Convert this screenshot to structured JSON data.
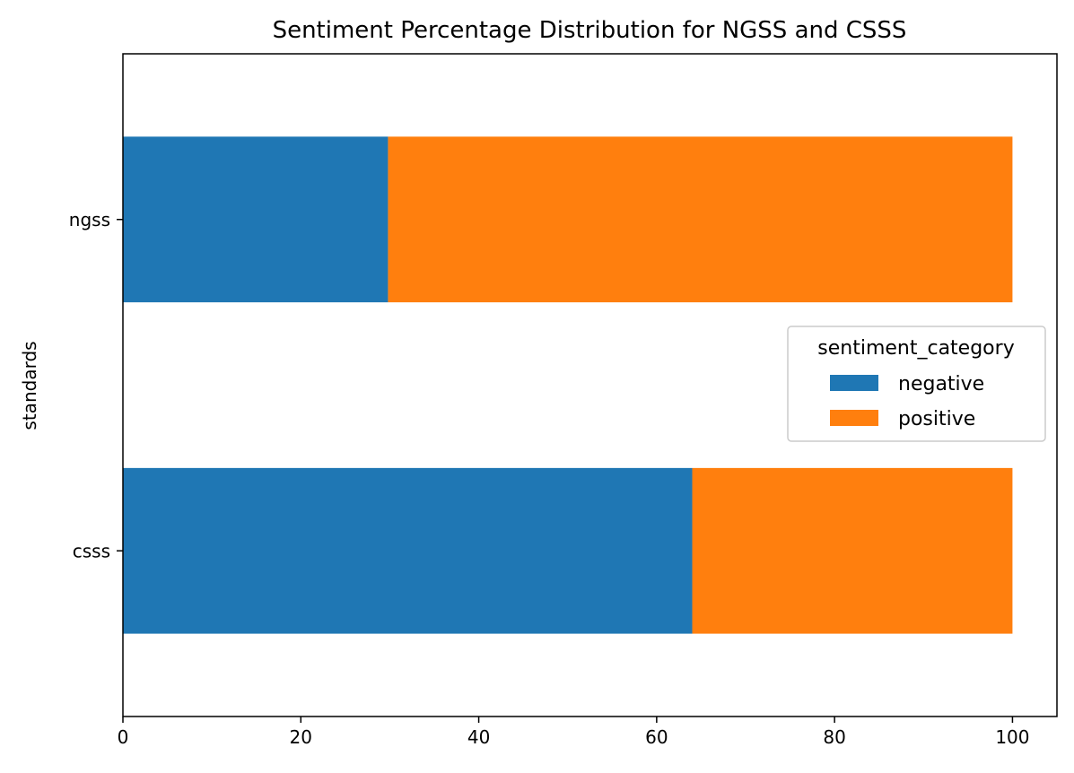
{
  "chart_data": {
    "type": "bar",
    "orientation": "horizontal",
    "stacked": true,
    "title": "Sentiment Percentage Distribution for NGSS and CSSS",
    "xlabel": "",
    "ylabel": "standards",
    "categories": [
      "csss",
      "ngss"
    ],
    "series": [
      {
        "name": "negative",
        "color": "#1f77b4",
        "values": [
          64.0,
          29.8
        ]
      },
      {
        "name": "positive",
        "color": "#ff7f0e",
        "values": [
          36.0,
          70.2
        ]
      }
    ],
    "xlim": [
      0,
      105
    ],
    "xticks": [
      0,
      20,
      40,
      60,
      80,
      100
    ],
    "grid": false,
    "legend": {
      "title": "sentiment_category",
      "placement": "center-right"
    }
  }
}
